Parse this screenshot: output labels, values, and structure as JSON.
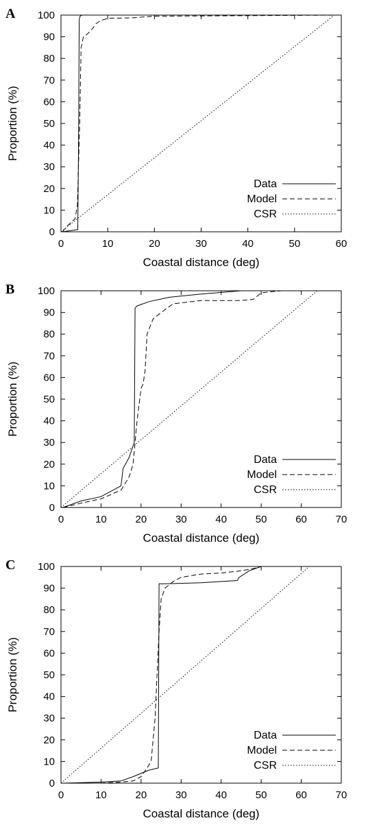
{
  "chart_data": [
    {
      "type": "line",
      "panel": "A",
      "xlabel": "Coastal distance (deg)",
      "ylabel": "Proportion (%)",
      "xlim": [
        0,
        60
      ],
      "ylim": [
        0,
        100
      ],
      "xticks": [
        0,
        10,
        20,
        30,
        40,
        50,
        60
      ],
      "yticks": [
        0,
        10,
        20,
        30,
        40,
        50,
        60,
        70,
        80,
        90,
        100
      ],
      "grid": false,
      "legend": "bottom-right",
      "series": [
        {
          "name": "Data",
          "style": "solid",
          "x": [
            0.3,
            2.0,
            3.6,
            3.75,
            3.9,
            4.1,
            4.5,
            60
          ],
          "y": [
            0,
            0.5,
            1,
            40,
            98,
            99.5,
            100,
            100
          ]
        },
        {
          "name": "Model",
          "style": "dashed",
          "x": [
            0.3,
            1.5,
            3.0,
            3.5,
            4.0,
            4.3,
            4.8,
            5.5,
            6.5,
            7.5,
            8.5,
            10,
            15,
            20,
            60
          ],
          "y": [
            0,
            3,
            6,
            12,
            50,
            85,
            90,
            91,
            93,
            96,
            97.5,
            98.5,
            98.7,
            99.5,
            100
          ]
        },
        {
          "name": "CSR",
          "style": "dotted",
          "x": [
            0,
            58.5
          ],
          "y": [
            0,
            100
          ]
        }
      ]
    },
    {
      "type": "line",
      "panel": "B",
      "xlabel": "Coastal distance (deg)",
      "ylabel": "Proportion (%)",
      "xlim": [
        0,
        70
      ],
      "ylim": [
        0,
        100
      ],
      "xticks": [
        0,
        10,
        20,
        30,
        40,
        50,
        60,
        70
      ],
      "yticks": [
        0,
        10,
        20,
        30,
        40,
        50,
        60,
        70,
        80,
        90,
        100
      ],
      "grid": false,
      "legend": "bottom-right",
      "series": [
        {
          "name": "Data",
          "style": "solid",
          "x": [
            0.5,
            5,
            10,
            15,
            15.5,
            17,
            18.3,
            18.5,
            19,
            22,
            27,
            35,
            45,
            60,
            70
          ],
          "y": [
            0,
            3,
            5,
            10,
            18,
            23,
            30,
            92,
            93,
            95,
            97,
            98.5,
            100,
            100,
            100
          ]
        },
        {
          "name": "Model",
          "style": "dashed",
          "x": [
            0.5,
            5,
            10,
            15,
            17,
            18,
            19,
            20,
            20.5,
            21,
            21.5,
            23,
            25,
            28,
            35,
            45,
            48,
            50,
            52,
            55,
            60,
            70
          ],
          "y": [
            0,
            2,
            4,
            8,
            14,
            20,
            40,
            55,
            57,
            63,
            80,
            87,
            90,
            94,
            95.5,
            95.5,
            96,
            99,
            99.5,
            100,
            100,
            100
          ]
        },
        {
          "name": "CSR",
          "style": "dotted",
          "x": [
            0,
            64
          ],
          "y": [
            0,
            100
          ]
        }
      ]
    },
    {
      "type": "line",
      "panel": "C",
      "xlabel": "Coastal distance (deg)",
      "ylabel": "Proportion (%)",
      "xlim": [
        0,
        70
      ],
      "ylim": [
        0,
        100
      ],
      "xticks": [
        0,
        10,
        20,
        30,
        40,
        50,
        60,
        70
      ],
      "yticks": [
        0,
        10,
        20,
        30,
        40,
        50,
        60,
        70,
        80,
        90,
        100
      ],
      "grid": false,
      "legend": "bottom-right",
      "series": [
        {
          "name": "Data",
          "style": "solid",
          "x": [
            0.5,
            10,
            15,
            18,
            22,
            24.3,
            24.5,
            26,
            35,
            44,
            44.5,
            47,
            50,
            60,
            70
          ],
          "y": [
            0,
            0.5,
            1,
            3,
            6,
            7,
            92,
            92,
            92.5,
            93.5,
            95,
            98,
            100,
            100,
            100
          ]
        },
        {
          "name": "Model",
          "style": "dashed",
          "x": [
            0.5,
            10,
            15,
            18,
            20,
            21.5,
            22.5,
            23,
            23.5,
            24,
            24.5,
            25,
            26,
            28,
            30,
            35,
            40,
            45,
            48,
            50,
            60,
            70
          ],
          "y": [
            0,
            0,
            0.5,
            1,
            3,
            7,
            10,
            20,
            30,
            50,
            70,
            85,
            90,
            93,
            95,
            96.5,
            97,
            98,
            99,
            100,
            100,
            100
          ]
        },
        {
          "name": "CSR",
          "style": "dotted",
          "x": [
            0,
            62
          ],
          "y": [
            0,
            100
          ]
        }
      ]
    }
  ]
}
